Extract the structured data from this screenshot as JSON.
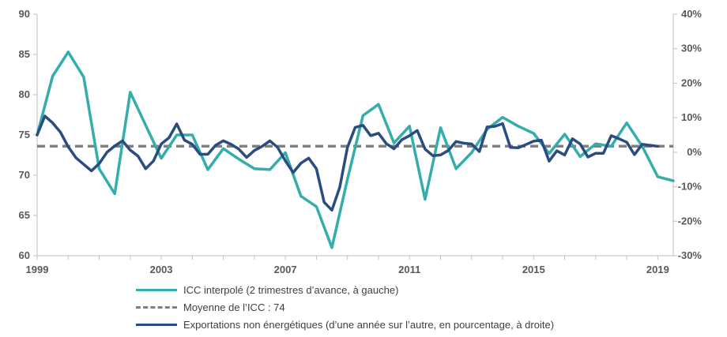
{
  "colors": {
    "icc": "#35ADAD",
    "average": "#808080",
    "exports": "#2B4C7E",
    "axis": "#BFBFBF"
  },
  "legend": {
    "icc": "ICC interpolé (2 trimestres d’avance, à gauche)",
    "average": "Moyenne de l’ICC : 74",
    "exports": "Exportations non énergétiques (d’une année sur l’autre, en pourcentage, à droite)"
  },
  "chart_data": {
    "type": "line",
    "grid": false,
    "legend_position": "bottom",
    "x_ticks": [
      "1999",
      "2003",
      "2007",
      "2011",
      "2015",
      "2019"
    ],
    "xlim": [
      1999,
      2019.5
    ],
    "left_axis": {
      "ticks": [
        "60",
        "65",
        "70",
        "75",
        "80",
        "85",
        "90"
      ],
      "ylim": [
        60,
        90
      ]
    },
    "right_axis": {
      "ticks": [
        "-30%",
        "-20%",
        "-10%",
        "0%",
        "10%",
        "20%",
        "30%",
        "40%"
      ],
      "ylim": [
        -30,
        40
      ]
    },
    "average_line": {
      "value": 73.6,
      "axis": "left"
    },
    "series": [
      {
        "key": "icc",
        "axis": "left",
        "x": [
          1999.0,
          1999.5,
          2000.0,
          2000.5,
          2001.0,
          2001.5,
          2002.0,
          2002.5,
          2003.0,
          2003.5,
          2004.0,
          2004.5,
          2005.0,
          2005.5,
          2006.0,
          2006.5,
          2007.0,
          2007.5,
          2008.0,
          2008.5,
          2009.0,
          2009.5,
          2010.0,
          2010.5,
          2011.0,
          2011.5,
          2012.0,
          2012.5,
          2013.0,
          2013.5,
          2014.0,
          2014.5,
          2015.0,
          2015.5,
          2016.0,
          2016.5,
          2017.0,
          2017.5,
          2018.0,
          2018.5,
          2019.0,
          2019.5
        ],
        "values": [
          75.0,
          82.3,
          85.3,
          82.2,
          70.8,
          67.7,
          80.3,
          76.2,
          72.1,
          75.0,
          75.0,
          70.7,
          73.3,
          72.0,
          70.8,
          70.7,
          72.8,
          67.4,
          66.1,
          61.0,
          69.5,
          77.4,
          78.8,
          74.0,
          76.1,
          67.0,
          75.9,
          70.8,
          72.8,
          75.7,
          77.2,
          76.1,
          75.2,
          72.7,
          75.1,
          72.3,
          73.9,
          73.6,
          76.5,
          73.6,
          69.8,
          69.3
        ]
      },
      {
        "key": "exports",
        "axis": "right",
        "x": [
          1999.0,
          1999.25,
          1999.5,
          1999.75,
          2000.0,
          2000.25,
          2000.5,
          2000.75,
          2001.0,
          2001.25,
          2001.5,
          2001.75,
          2002.0,
          2002.25,
          2002.5,
          2002.75,
          2003.0,
          2003.25,
          2003.5,
          2003.75,
          2004.0,
          2004.25,
          2004.5,
          2004.75,
          2005.0,
          2005.25,
          2005.5,
          2005.75,
          2006.0,
          2006.25,
          2006.5,
          2006.75,
          2007.0,
          2007.25,
          2007.5,
          2007.75,
          2008.0,
          2008.25,
          2008.5,
          2008.75,
          2009.0,
          2009.25,
          2009.5,
          2009.75,
          2010.0,
          2010.25,
          2010.5,
          2010.75,
          2011.0,
          2011.25,
          2011.5,
          2011.75,
          2012.0,
          2012.25,
          2012.5,
          2012.75,
          2013.0,
          2013.25,
          2013.5,
          2013.75,
          2014.0,
          2014.25,
          2014.5,
          2014.75,
          2015.0,
          2015.25,
          2015.5,
          2015.75,
          2016.0,
          2016.25,
          2016.5,
          2016.75,
          2017.0,
          2017.25,
          2017.5,
          2017.75,
          2018.0,
          2018.25,
          2018.5,
          2018.75,
          2019.0
        ],
        "values": [
          5.0,
          10.5,
          8.5,
          5.8,
          1.6,
          -1.6,
          -3.5,
          -5.4,
          -3.3,
          0.0,
          1.8,
          3.3,
          0.6,
          -1.1,
          -4.8,
          -2.5,
          2.4,
          4.2,
          8.2,
          3.5,
          2.3,
          -0.6,
          -0.6,
          2.0,
          3.3,
          2.3,
          0.9,
          -1.5,
          0.5,
          1.7,
          3.3,
          1.4,
          -2.5,
          -5.9,
          -3.2,
          -1.7,
          -4.8,
          -14.5,
          -16.8,
          -10.2,
          1.4,
          7.2,
          7.8,
          4.8,
          5.5,
          2.5,
          1.0,
          3.6,
          4.8,
          6.3,
          0.9,
          -1.0,
          -0.8,
          0.5,
          3.1,
          2.6,
          2.4,
          0.2,
          7.3,
          7.5,
          8.3,
          1.4,
          1.3,
          2.2,
          3.2,
          3.5,
          -2.6,
          0.4,
          -0.8,
          3.9,
          2.4,
          -1.4,
          -0.3,
          -0.3,
          4.8,
          3.9,
          2.9,
          -0.7,
          2.3,
          2.0,
          1.7
        ]
      }
    ]
  }
}
